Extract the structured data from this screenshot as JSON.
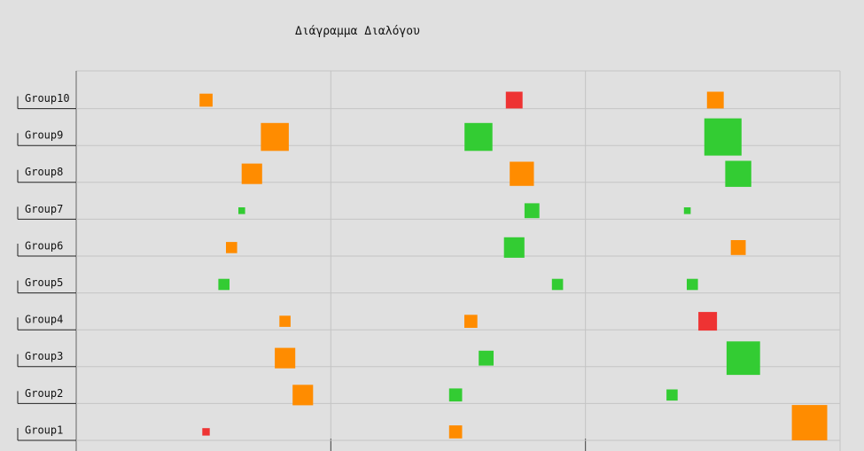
{
  "chart_data": {
    "type": "scatter",
    "title": "Διάγραμμα Διαλόγου",
    "categories": [
      "Group1",
      "Group2",
      "Group3",
      "Group4",
      "Group5",
      "Group6",
      "Group7",
      "Group8",
      "Group9",
      "Group10"
    ],
    "columns": 3,
    "grid": true,
    "legend": "none",
    "colors": {
      "orange": "#ff8c00",
      "green": "#33cc33",
      "red": "#ee3333"
    },
    "series": [
      {
        "column": 1,
        "markers": [
          {
            "group": "Group1",
            "value": 0.51,
            "size": 0.2,
            "color": "red"
          },
          {
            "group": "Group2",
            "value": 0.89,
            "size": 0.55,
            "color": "orange"
          },
          {
            "group": "Group3",
            "value": 0.82,
            "size": 0.55,
            "color": "orange"
          },
          {
            "group": "Group4",
            "value": 0.82,
            "size": 0.3,
            "color": "orange"
          },
          {
            "group": "Group5",
            "value": 0.58,
            "size": 0.3,
            "color": "green"
          },
          {
            "group": "Group6",
            "value": 0.61,
            "size": 0.3,
            "color": "orange"
          },
          {
            "group": "Group7",
            "value": 0.65,
            "size": 0.18,
            "color": "green"
          },
          {
            "group": "Group8",
            "value": 0.69,
            "size": 0.55,
            "color": "orange"
          },
          {
            "group": "Group9",
            "value": 0.78,
            "size": 0.75,
            "color": "orange"
          },
          {
            "group": "Group10",
            "value": 0.51,
            "size": 0.35,
            "color": "orange"
          }
        ]
      },
      {
        "column": 2,
        "markers": [
          {
            "group": "Group1",
            "value": 0.49,
            "size": 0.35,
            "color": "orange"
          },
          {
            "group": "Group2",
            "value": 0.49,
            "size": 0.35,
            "color": "green"
          },
          {
            "group": "Group3",
            "value": 0.61,
            "size": 0.4,
            "color": "green"
          },
          {
            "group": "Group4",
            "value": 0.55,
            "size": 0.35,
            "color": "orange"
          },
          {
            "group": "Group5",
            "value": 0.89,
            "size": 0.3,
            "color": "green"
          },
          {
            "group": "Group6",
            "value": 0.72,
            "size": 0.55,
            "color": "green"
          },
          {
            "group": "Group7",
            "value": 0.79,
            "size": 0.4,
            "color": "green"
          },
          {
            "group": "Group8",
            "value": 0.75,
            "size": 0.65,
            "color": "orange"
          },
          {
            "group": "Group9",
            "value": 0.58,
            "size": 0.75,
            "color": "green"
          },
          {
            "group": "Group10",
            "value": 0.72,
            "size": 0.45,
            "color": "red"
          }
        ]
      },
      {
        "column": 3,
        "markers": [
          {
            "group": "Group1",
            "value": 0.88,
            "size": 0.95,
            "color": "orange"
          },
          {
            "group": "Group2",
            "value": 0.34,
            "size": 0.3,
            "color": "green"
          },
          {
            "group": "Group3",
            "value": 0.62,
            "size": 0.9,
            "color": "green"
          },
          {
            "group": "Group4",
            "value": 0.48,
            "size": 0.5,
            "color": "red"
          },
          {
            "group": "Group5",
            "value": 0.42,
            "size": 0.3,
            "color": "green"
          },
          {
            "group": "Group6",
            "value": 0.6,
            "size": 0.4,
            "color": "orange"
          },
          {
            "group": "Group7",
            "value": 0.4,
            "size": 0.18,
            "color": "green"
          },
          {
            "group": "Group8",
            "value": 0.6,
            "size": 0.7,
            "color": "green"
          },
          {
            "group": "Group9",
            "value": 0.54,
            "size": 1.0,
            "color": "green"
          },
          {
            "group": "Group10",
            "value": 0.51,
            "size": 0.45,
            "color": "orange"
          }
        ]
      }
    ]
  }
}
